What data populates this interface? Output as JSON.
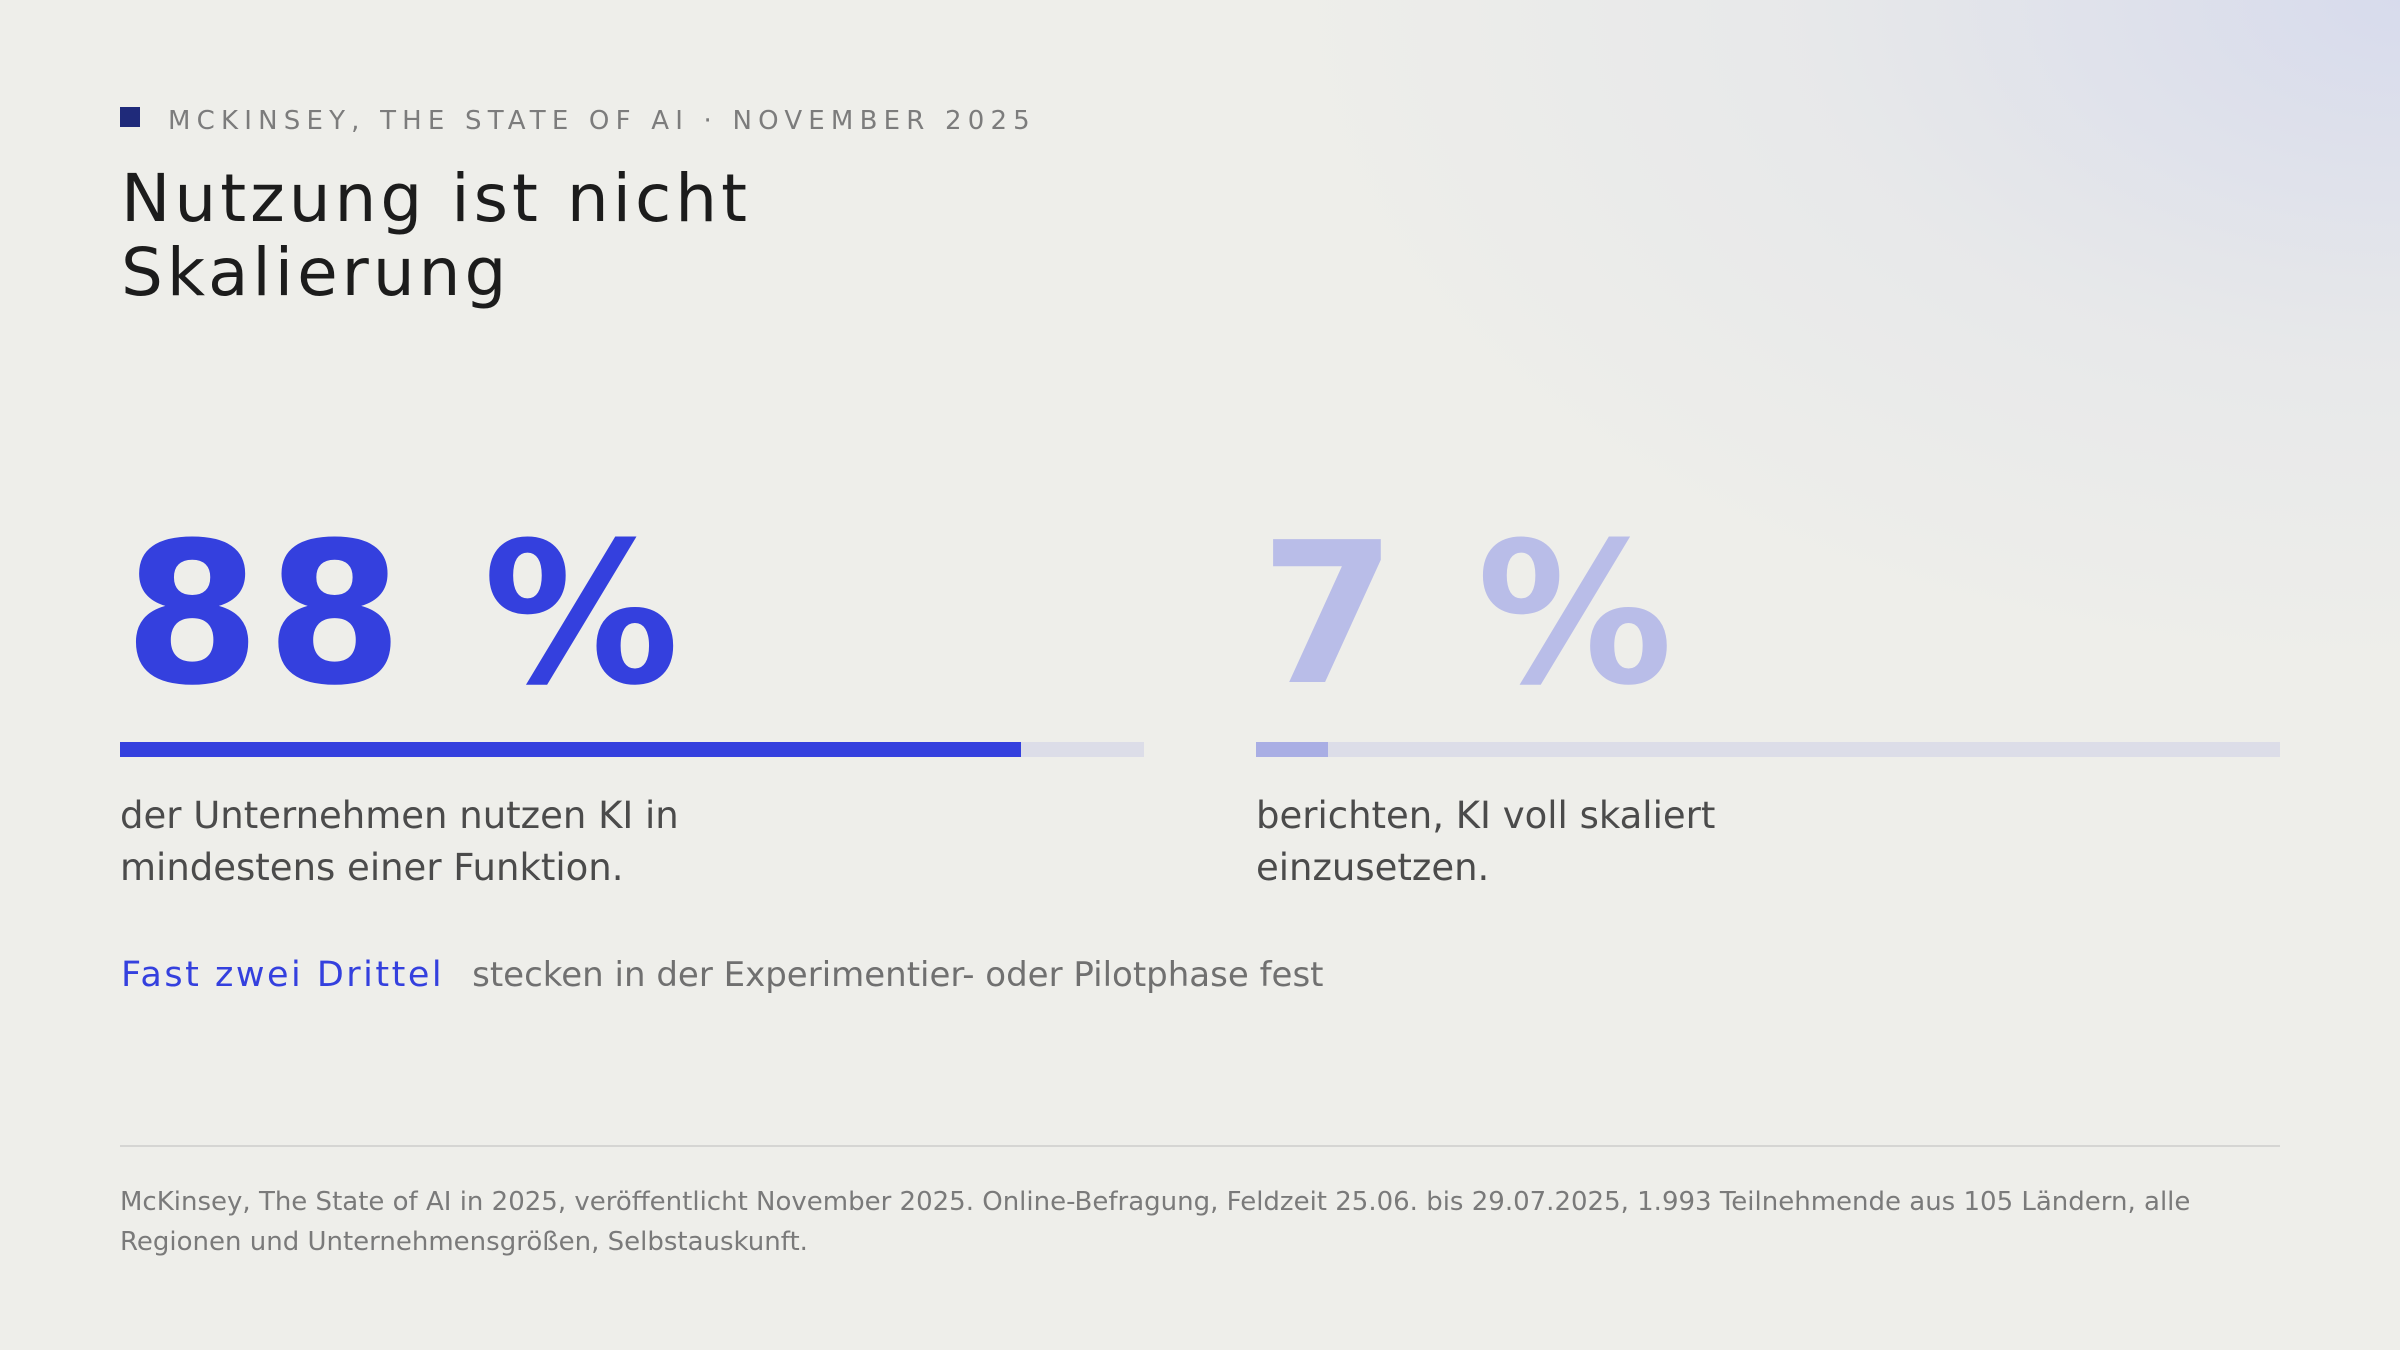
{
  "header": {
    "eyebrow": "MCKINSEY, THE STATE OF AI · NOVEMBER 2025",
    "title": "Nutzung ist nicht\nSkalierung"
  },
  "stats": [
    {
      "value": "88 %",
      "progress": 0.88,
      "description": "der Unternehmen nutzen KI in mindestens einer Funktion."
    },
    {
      "value": "7 %",
      "progress": 0.07,
      "description": "berichten, KI voll skaliert einzusetzen."
    }
  ],
  "highlight": {
    "emphasis": "Fast zwei Drittel",
    "text": "stecken in der Experimentier- oder Pilotphase fest"
  },
  "footnote": "McKinsey, The State of AI in 2025, veröffentlicht November 2025. Online-Befragung, Feldzeit 25.06. bis 29.07.2025, 1.993 Teilnehmende aus 105 Ländern, alle Regionen und Unternehmensgrößen, Selbstauskunft.",
  "colors": {
    "accent": "#3440de",
    "accent_muted": "#b9bde8",
    "bar_track": "#dcdde8",
    "marker": "#1f2a7a",
    "background": "#eeeeea"
  }
}
